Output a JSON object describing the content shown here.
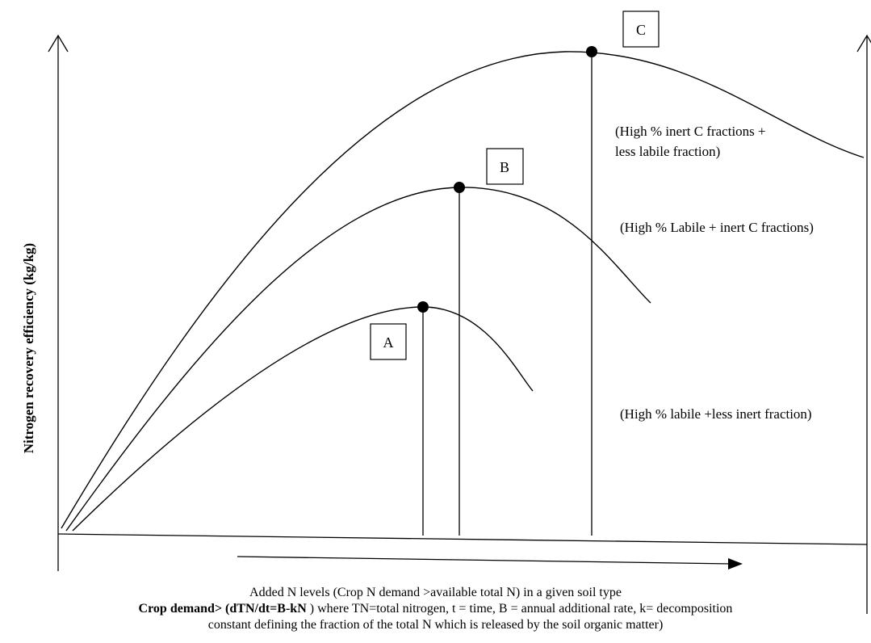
{
  "y_axis_label": "Nitrogen recovery efficiency (kg/kg)",
  "x_axis_label": "Added N levels (Crop N demand >available total N) in a given soil type",
  "equation_bold": "Crop demand> (dTN/dt=B-kN",
  "equation_rest": " ) where TN=total nitrogen, t = time, B = annual additional rate, k= decomposition",
  "equation_line2": "constant defining the fraction of the total N which is released by the soil organic matter)",
  "curves": [
    {
      "id": "A",
      "label": "A",
      "note_lines": [
        "(High % labile +less inert fraction)"
      ]
    },
    {
      "id": "B",
      "label": "B",
      "note_lines": [
        "(High % Labile + inert C fractions)"
      ]
    },
    {
      "id": "C",
      "label": "C",
      "note_lines": [
        "(High % inert C fractions +",
        "less labile fraction)"
      ]
    }
  ]
}
